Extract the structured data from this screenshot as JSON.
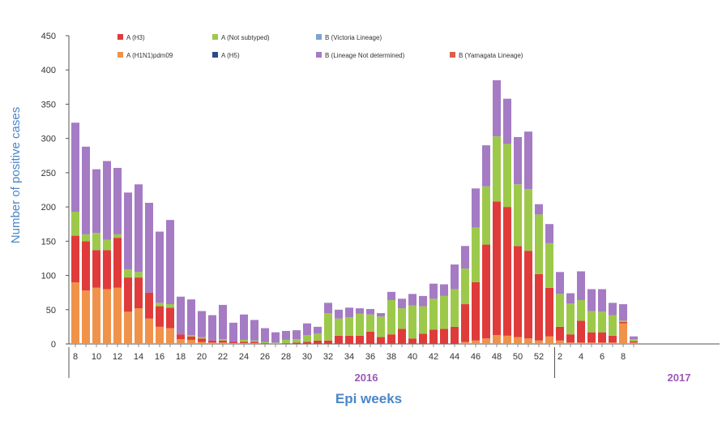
{
  "chart_data": {
    "type": "bar",
    "stacked": true,
    "ylabel": "Number of positive cases",
    "xlabel": "Epi weeks",
    "ylim": [
      0,
      450
    ],
    "yticks": [
      0,
      50,
      100,
      150,
      200,
      250,
      300,
      350,
      400,
      450
    ],
    "grid": false,
    "legend_position": "top",
    "years": [
      {
        "label": "2016",
        "from_week": "8",
        "to_week": "52"
      },
      {
        "label": "2017",
        "from_week": "1",
        "to_week": "8"
      }
    ],
    "categories": [
      "8",
      "9",
      "10",
      "11",
      "12",
      "13",
      "14",
      "15",
      "16",
      "17",
      "18",
      "19",
      "20",
      "21",
      "22",
      "23",
      "24",
      "25",
      "26",
      "27",
      "28",
      "29",
      "30",
      "31",
      "32",
      "33",
      "34",
      "35",
      "36",
      "37",
      "38",
      "39",
      "40",
      "41",
      "42",
      "43",
      "44",
      "45",
      "46",
      "47",
      "48",
      "49",
      "50",
      "51",
      "52",
      "53",
      "1",
      "2",
      "3",
      "4",
      "5",
      "6",
      "7",
      "8"
    ],
    "tick_labels": [
      "8",
      "10",
      "12",
      "14",
      "16",
      "18",
      "20",
      "22",
      "24",
      "26",
      "28",
      "30",
      "32",
      "34",
      "36",
      "38",
      "40",
      "42",
      "44",
      "46",
      "48",
      "50",
      "52",
      "2",
      "4",
      "6",
      "8"
    ],
    "series": [
      {
        "name": "A (H1N1)pdm09",
        "color": "#f0924a",
        "values": [
          90,
          78,
          82,
          80,
          82,
          47,
          52,
          37,
          25,
          23,
          7,
          6,
          3,
          2,
          2,
          1,
          1,
          1,
          0,
          0,
          0,
          0,
          0,
          0,
          0,
          0,
          0,
          0,
          0,
          0,
          0,
          0,
          0,
          0,
          0,
          0,
          0,
          3,
          5,
          8,
          13,
          12,
          10,
          8,
          5,
          11,
          5,
          2,
          2,
          2,
          2,
          2,
          30,
          2
        ]
      },
      {
        "name": "A (H3)",
        "color": "#e03b3b",
        "values": [
          68,
          72,
          55,
          57,
          73,
          50,
          45,
          38,
          30,
          30,
          7,
          5,
          5,
          3,
          3,
          2,
          2,
          2,
          1,
          0,
          1,
          2,
          3,
          5,
          5,
          12,
          12,
          12,
          18,
          10,
          14,
          22,
          8,
          15,
          21,
          22,
          25,
          55,
          85,
          137,
          195,
          188,
          133,
          128,
          97,
          71,
          20,
          12,
          32,
          15,
          15,
          10,
          2,
          2
        ]
      },
      {
        "name": "A (Not subtyped)",
        "color": "#9dc94b",
        "values": [
          35,
          10,
          25,
          15,
          5,
          12,
          8,
          0,
          5,
          5,
          0,
          2,
          2,
          0,
          2,
          0,
          3,
          2,
          2,
          2,
          5,
          5,
          10,
          10,
          40,
          25,
          27,
          32,
          25,
          30,
          50,
          30,
          48,
          40,
          45,
          48,
          55,
          52,
          80,
          85,
          95,
          92,
          90,
          90,
          87,
          65,
          48,
          45,
          30,
          31,
          30,
          30,
          2,
          3
        ]
      },
      {
        "name": "A (H5)",
        "color": "#2b4a8a",
        "values": [
          0,
          0,
          0,
          0,
          0,
          0,
          0,
          0,
          0,
          0,
          0,
          0,
          0,
          0,
          0,
          0,
          0,
          0,
          0,
          0,
          0,
          0,
          0,
          0,
          0,
          0,
          0,
          0,
          0,
          0,
          0,
          0,
          0,
          0,
          0,
          0,
          0,
          0,
          0,
          0,
          0,
          0,
          0,
          0,
          0,
          0,
          0,
          0,
          0,
          0,
          0,
          0,
          0,
          0
        ]
      },
      {
        "name": "B (Victoria Lineage)",
        "color": "#7ba3d6",
        "values": [
          0,
          0,
          0,
          0,
          0,
          0,
          0,
          0,
          0,
          0,
          0,
          0,
          0,
          0,
          0,
          0,
          0,
          0,
          0,
          0,
          0,
          0,
          0,
          0,
          0,
          0,
          0,
          0,
          0,
          0,
          0,
          0,
          0,
          0,
          0,
          0,
          0,
          0,
          0,
          0,
          0,
          0,
          0,
          0,
          0,
          0,
          0,
          0,
          0,
          0,
          0,
          0,
          0,
          0
        ]
      },
      {
        "name": "B (Lineage Not determined)",
        "color": "#a57bc4",
        "values": [
          130,
          128,
          93,
          115,
          97,
          112,
          128,
          131,
          104,
          123,
          55,
          52,
          38,
          37,
          50,
          28,
          37,
          30,
          20,
          15,
          13,
          13,
          17,
          10,
          15,
          13,
          14,
          8,
          8,
          5,
          12,
          14,
          17,
          15,
          22,
          17,
          36,
          33,
          57,
          60,
          82,
          66,
          69,
          84,
          15,
          28,
          32,
          15,
          42,
          32,
          33,
          18,
          24,
          4
        ]
      },
      {
        "name": "B (Yamagata Lineage)",
        "color": "#d9604a",
        "values": [
          0,
          0,
          0,
          0,
          0,
          0,
          0,
          0,
          0,
          0,
          0,
          0,
          0,
          0,
          0,
          0,
          0,
          0,
          0,
          0,
          0,
          0,
          0,
          0,
          0,
          0,
          0,
          0,
          0,
          0,
          0,
          0,
          0,
          0,
          0,
          0,
          0,
          0,
          0,
          0,
          0,
          0,
          0,
          0,
          0,
          0,
          0,
          0,
          0,
          0,
          0,
          0,
          0,
          0
        ]
      }
    ],
    "legend_order": [
      "A (H3)",
      "A (Not subtyped)",
      "B (Victoria Lineage)",
      "A (H1N1)pdm09",
      "A (H5)",
      "B (Lineage Not determined)",
      "B (Yamagata Lineage)"
    ]
  }
}
